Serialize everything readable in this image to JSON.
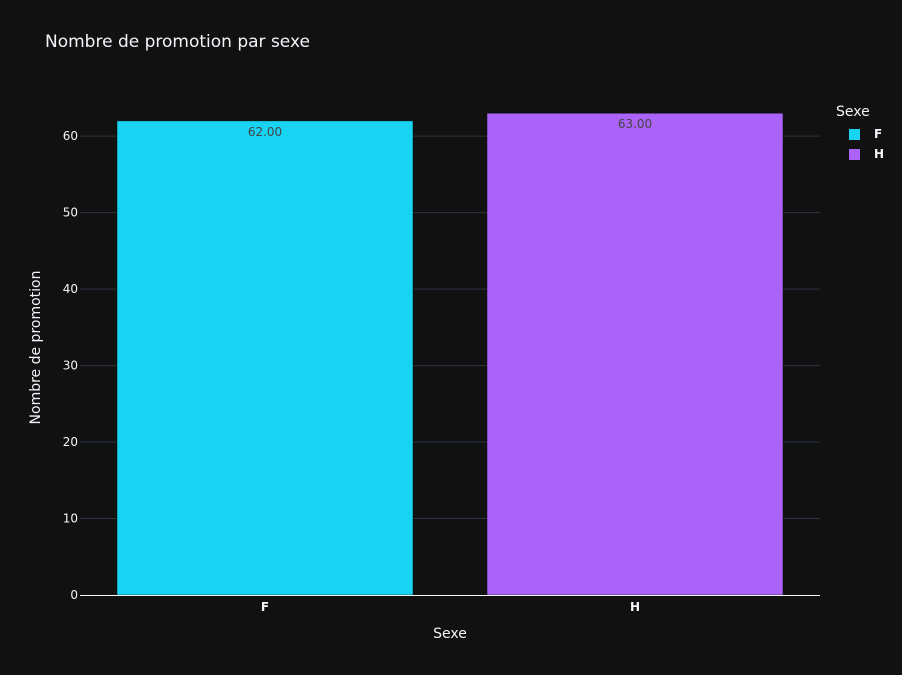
{
  "chart_data": {
    "type": "bar",
    "title": "Nombre de promotion par sexe",
    "xlabel": "Sexe",
    "ylabel": "Nombre de promotion",
    "categories": [
      "F",
      "H"
    ],
    "series": [
      {
        "name": "F",
        "category": "F",
        "value": 62,
        "label": "62.00",
        "color": "#19d3f3"
      },
      {
        "name": "H",
        "category": "H",
        "value": 63,
        "label": "63.00",
        "color": "#ab63fa"
      }
    ],
    "ylim": [
      0,
      66.3
    ],
    "yticks": [
      0,
      10,
      20,
      30,
      40,
      50,
      60
    ],
    "grid": true,
    "legend": {
      "title": "Sexe",
      "placement": "top-right"
    }
  },
  "colors": {
    "background": "#111111",
    "grid": "#283442",
    "text": "#f2f5fa",
    "bar_label": "#444444"
  }
}
